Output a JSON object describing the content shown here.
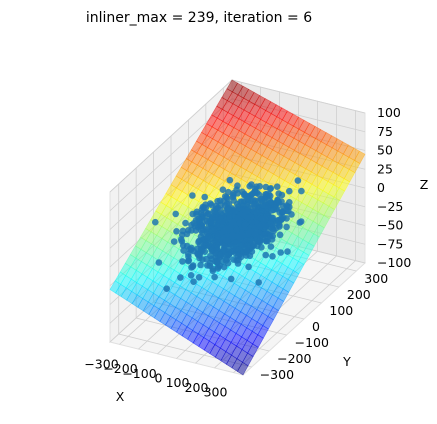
{
  "chart_data": {
    "type": "3d-scatter-surface",
    "title": "inliner_max = 239, iteration = 6",
    "xlabel": "X",
    "ylabel": "Y",
    "zlabel": "Z",
    "xlim": [
      -350,
      350
    ],
    "ylim": [
      -350,
      350
    ],
    "zlim": [
      -100,
      100
    ],
    "x_ticks": [
      "−300",
      "−200",
      "−100",
      "0",
      "100",
      "200",
      "300"
    ],
    "y_ticks": [
      "−300",
      "−200",
      "−100",
      "0",
      "100",
      "200",
      "300"
    ],
    "z_ticks": [
      "−100",
      "−75",
      "−50",
      "−25",
      "0",
      "25",
      "50",
      "75",
      "100"
    ],
    "grid": true,
    "surface": {
      "kind": "fitted plane",
      "colormap": "jet",
      "alpha": 0.5,
      "corners": [
        {
          "x": -350,
          "y": -350,
          "z": -30
        },
        {
          "x": 350,
          "y": -350,
          "z": -100
        },
        {
          "x": 350,
          "y": 350,
          "z": 45
        },
        {
          "x": -350,
          "y": 350,
          "z": 100
        }
      ]
    },
    "scatter": {
      "color": "#1f77b4",
      "n_points": 900,
      "x_center": 0,
      "x_spread": 90,
      "y_center": 0,
      "y_spread": 90,
      "z_center": 0,
      "z_spread": 12
    }
  }
}
